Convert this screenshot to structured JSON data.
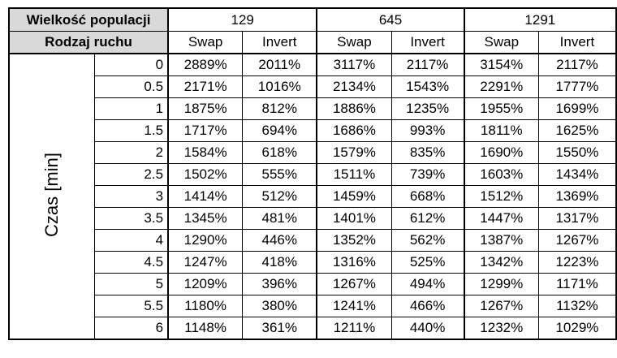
{
  "header": {
    "population_label": "Wielkość populacji",
    "move_label": "Rodzaj ruchu",
    "populations": [
      "129",
      "645",
      "1291"
    ],
    "move_types": [
      "Swap",
      "Invert",
      "Swap",
      "Invert",
      "Swap",
      "Invert"
    ]
  },
  "axis_label": "Czas [min]",
  "rows": [
    {
      "time": "0",
      "values": [
        "2889%",
        "2011%",
        "3117%",
        "2117%",
        "3154%",
        "2117%"
      ]
    },
    {
      "time": "0.5",
      "values": [
        "2171%",
        "1016%",
        "2134%",
        "1543%",
        "2291%",
        "1777%"
      ]
    },
    {
      "time": "1",
      "values": [
        "1875%",
        "812%",
        "1886%",
        "1235%",
        "1955%",
        "1699%"
      ]
    },
    {
      "time": "1.5",
      "values": [
        "1717%",
        "694%",
        "1686%",
        "993%",
        "1811%",
        "1625%"
      ]
    },
    {
      "time": "2",
      "values": [
        "1584%",
        "618%",
        "1579%",
        "835%",
        "1690%",
        "1550%"
      ]
    },
    {
      "time": "2.5",
      "values": [
        "1502%",
        "555%",
        "1511%",
        "739%",
        "1603%",
        "1434%"
      ]
    },
    {
      "time": "3",
      "values": [
        "1414%",
        "512%",
        "1459%",
        "668%",
        "1512%",
        "1369%"
      ]
    },
    {
      "time": "3.5",
      "values": [
        "1345%",
        "481%",
        "1401%",
        "612%",
        "1447%",
        "1317%"
      ]
    },
    {
      "time": "4",
      "values": [
        "1290%",
        "446%",
        "1352%",
        "562%",
        "1387%",
        "1267%"
      ]
    },
    {
      "time": "4.5",
      "values": [
        "1247%",
        "418%",
        "1316%",
        "525%",
        "1342%",
        "1223%"
      ]
    },
    {
      "time": "5",
      "values": [
        "1209%",
        "396%",
        "1267%",
        "494%",
        "1299%",
        "1171%"
      ]
    },
    {
      "time": "5.5",
      "values": [
        "1180%",
        "380%",
        "1241%",
        "466%",
        "1267%",
        "1132%"
      ]
    },
    {
      "time": "6",
      "values": [
        "1148%",
        "361%",
        "1211%",
        "440%",
        "1232%",
        "1029%"
      ]
    }
  ]
}
